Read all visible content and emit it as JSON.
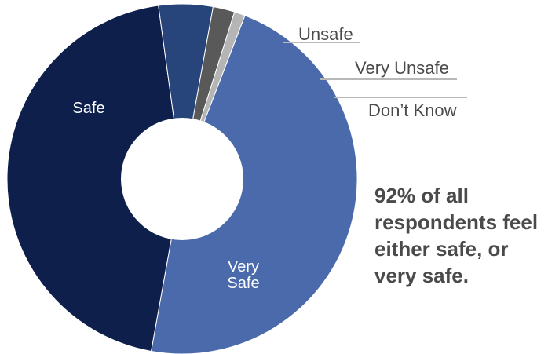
{
  "colors": {
    "safe": "#0e1f4c",
    "very_safe": "#4a6aab",
    "unsafe": "#27457b",
    "very_unsafe": "#595959",
    "dont_know": "#b5b5b5",
    "text": "#4a4a4a",
    "leader": "#b8b8b8"
  },
  "chart_data": {
    "type": "pie",
    "variant": "donut",
    "title": "",
    "legend": "none",
    "slices": [
      {
        "label": "Very Safe",
        "value": 47,
        "color": "#4a6aab",
        "label_position": "inside"
      },
      {
        "label": "Safe",
        "value": 45,
        "color": "#0e1f4c",
        "label_position": "inside"
      },
      {
        "label": "Unsafe",
        "value": 5,
        "color": "#27457b",
        "label_position": "outside"
      },
      {
        "label": "Very Unsafe",
        "value": 2,
        "color": "#595959",
        "label_position": "outside"
      },
      {
        "label": "Don’t Know",
        "value": 1,
        "color": "#b5b5b5",
        "label_position": "outside"
      }
    ]
  },
  "callout": {
    "lines": [
      "92% of all",
      "respondents feel",
      "either safe, or",
      "very safe."
    ]
  }
}
